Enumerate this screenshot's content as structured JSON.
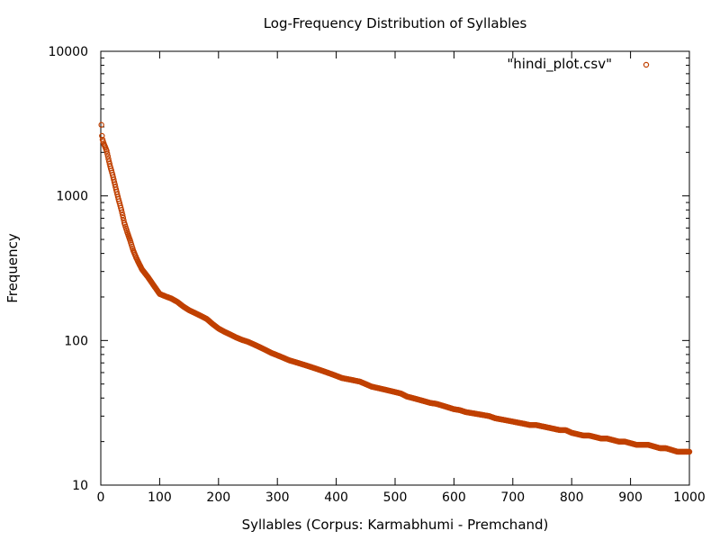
{
  "chart_data": {
    "type": "scatter",
    "title": "Log-Frequency Distribution of Syllables",
    "xlabel": "Syllables (Corpus: Karmabhumi - Premchand)",
    "ylabel": "Frequency",
    "xlim": [
      0,
      1000
    ],
    "ylim": [
      10,
      10000
    ],
    "yscale": "log",
    "x_ticks": [
      0,
      100,
      200,
      300,
      400,
      500,
      600,
      700,
      800,
      900,
      1000
    ],
    "y_ticks": [
      10,
      100,
      1000,
      10000
    ],
    "x_tick_labels": [
      "0",
      "100",
      "200",
      "300",
      "400",
      "500",
      "600",
      "700",
      "800",
      "900",
      "1000"
    ],
    "y_tick_labels": [
      "10",
      "100",
      "1000",
      "10000"
    ],
    "grid": false,
    "legend_position": "top-right",
    "series": [
      {
        "name": "\"hindi_plot.csv\"",
        "color": "#c04000",
        "marker": "open-circle",
        "points": [
          [
            1,
            3100
          ],
          [
            2,
            2600
          ],
          [
            3,
            2450
          ],
          [
            5,
            2300
          ],
          [
            7,
            2200
          ],
          [
            10,
            2050
          ],
          [
            13,
            1800
          ],
          [
            16,
            1600
          ],
          [
            20,
            1400
          ],
          [
            25,
            1150
          ],
          [
            30,
            950
          ],
          [
            35,
            800
          ],
          [
            40,
            650
          ],
          [
            45,
            560
          ],
          [
            50,
            490
          ],
          [
            55,
            420
          ],
          [
            60,
            375
          ],
          [
            65,
            340
          ],
          [
            70,
            310
          ],
          [
            80,
            275
          ],
          [
            90,
            240
          ],
          [
            100,
            210
          ],
          [
            110,
            202
          ],
          [
            120,
            195
          ],
          [
            130,
            185
          ],
          [
            140,
            172
          ],
          [
            150,
            162
          ],
          [
            160,
            155
          ],
          [
            170,
            148
          ],
          [
            180,
            141
          ],
          [
            190,
            130
          ],
          [
            200,
            121
          ],
          [
            210,
            115
          ],
          [
            220,
            110
          ],
          [
            230,
            105
          ],
          [
            240,
            101
          ],
          [
            250,
            98
          ],
          [
            260,
            94
          ],
          [
            270,
            90
          ],
          [
            280,
            86
          ],
          [
            290,
            82
          ],
          [
            300,
            79
          ],
          [
            310,
            76
          ],
          [
            320,
            73
          ],
          [
            330,
            71
          ],
          [
            340,
            69
          ],
          [
            350,
            67
          ],
          [
            360,
            65
          ],
          [
            370,
            63
          ],
          [
            380,
            61
          ],
          [
            390,
            59
          ],
          [
            400,
            57
          ],
          [
            410,
            55
          ],
          [
            420,
            54
          ],
          [
            430,
            53
          ],
          [
            440,
            52
          ],
          [
            450,
            50
          ],
          [
            460,
            48
          ],
          [
            470,
            47
          ],
          [
            480,
            46
          ],
          [
            490,
            45
          ],
          [
            500,
            44
          ],
          [
            510,
            43
          ],
          [
            520,
            41
          ],
          [
            530,
            40
          ],
          [
            540,
            39
          ],
          [
            550,
            38
          ],
          [
            560,
            37
          ],
          [
            570,
            36.5
          ],
          [
            580,
            35.5
          ],
          [
            590,
            34.5
          ],
          [
            600,
            33.5
          ],
          [
            610,
            33
          ],
          [
            620,
            32
          ],
          [
            630,
            31.5
          ],
          [
            640,
            31
          ],
          [
            650,
            30.5
          ],
          [
            660,
            30
          ],
          [
            670,
            29
          ],
          [
            680,
            28.5
          ],
          [
            690,
            28
          ],
          [
            700,
            27.5
          ],
          [
            710,
            27
          ],
          [
            720,
            26.5
          ],
          [
            730,
            26
          ],
          [
            740,
            26
          ],
          [
            750,
            25.5
          ],
          [
            760,
            25
          ],
          [
            770,
            24.5
          ],
          [
            780,
            24
          ],
          [
            790,
            24
          ],
          [
            800,
            23
          ],
          [
            810,
            22.5
          ],
          [
            820,
            22
          ],
          [
            830,
            22
          ],
          [
            840,
            21.5
          ],
          [
            850,
            21
          ],
          [
            860,
            21
          ],
          [
            870,
            20.5
          ],
          [
            880,
            20
          ],
          [
            890,
            20
          ],
          [
            900,
            19.5
          ],
          [
            910,
            19
          ],
          [
            920,
            19
          ],
          [
            930,
            19
          ],
          [
            940,
            18.5
          ],
          [
            950,
            18
          ],
          [
            960,
            18
          ],
          [
            970,
            17.5
          ],
          [
            980,
            17
          ],
          [
            990,
            17
          ],
          [
            1000,
            17
          ]
        ]
      }
    ]
  }
}
